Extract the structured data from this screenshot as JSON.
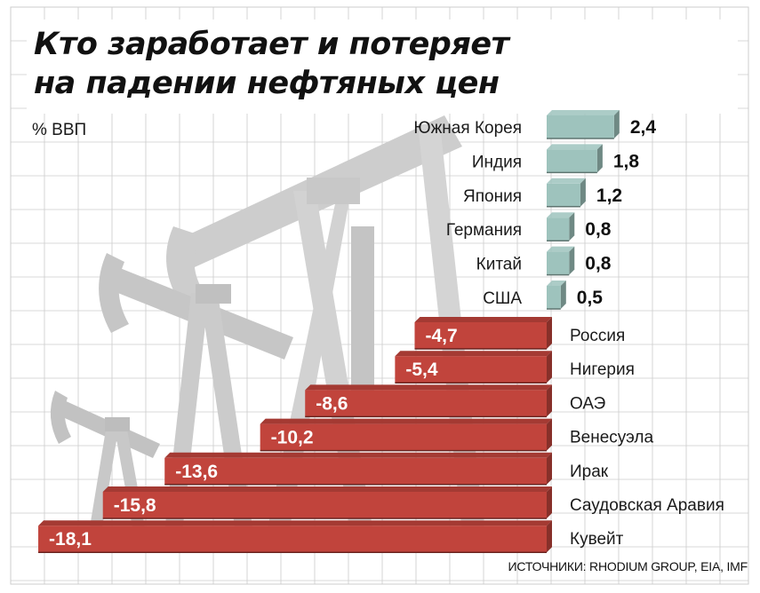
{
  "title_lines": [
    "Кто заработает и потеряет",
    "на падении нефтяных цен"
  ],
  "unit_label": "% ВВП",
  "source": "ИСТОЧНИКИ: RHODIUM GROUP, EIA, IMF",
  "colors": {
    "positive": "#9ec3bd",
    "negative": "#c1443c",
    "grid": "#cccccc",
    "silhouette": "#c9c9c9"
  },
  "chart_data": {
    "type": "bar",
    "orientation": "horizontal",
    "title": "Кто заработает и потеряет на падении нефтяных цен",
    "unit": "% ВВП",
    "categories": [
      "Южная Корея",
      "Индия",
      "Япония",
      "Германия",
      "Китай",
      "США",
      "Россия",
      "Нигерия",
      "ОАЭ",
      "Венесуэла",
      "Ирак",
      "Саудовская Аравия",
      "Кувейт"
    ],
    "values": [
      2.4,
      1.8,
      1.2,
      0.8,
      0.8,
      0.5,
      -4.7,
      -5.4,
      -8.6,
      -10.2,
      -13.6,
      -15.8,
      -18.1
    ],
    "value_labels": [
      "2,4",
      "1,8",
      "1,2",
      "0,8",
      "0,8",
      "0,5",
      "-4,7",
      "-5,4",
      "-8,6",
      "-10,2",
      "-13,6",
      "-15,8",
      "-18,1"
    ],
    "grid": true
  }
}
